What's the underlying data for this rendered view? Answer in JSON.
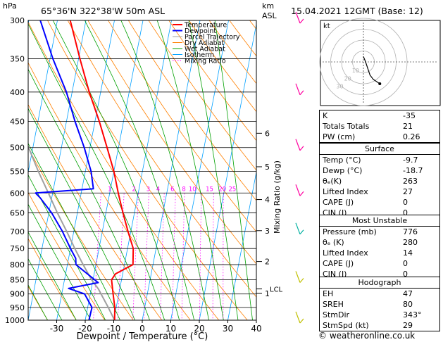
{
  "header": {
    "pressure_unit": "hPa",
    "location": "65°36'N  322°38'W  50m  ASL",
    "altitude_unit": "km",
    "altitude_unit2": "ASL",
    "datetime": "15.04.2021 12GMT (Base: 12)"
  },
  "footer": {
    "credit": "© weatheronline.co.uk"
  },
  "colors": {
    "temperature": "#ff0000",
    "dewpoint": "#0000ff",
    "parcel": "#a0a0a0",
    "dry_adiabat": "#ff8000",
    "wet_adiabat": "#00a000",
    "isotherm": "#00a0ff",
    "mixing_ratio": "#ff00ff",
    "wind": "#ff00a0"
  },
  "chart_data": {
    "type": "line",
    "title": "",
    "xlabel": "Dewpoint / Temperature (°C)",
    "ylabel": "Mixing Ratio (g/kg)",
    "xlim": [
      -40,
      40
    ],
    "x_ticks": [
      -30,
      -20,
      -10,
      0,
      10,
      20,
      30,
      40
    ],
    "pressure_levels": [
      300,
      350,
      400,
      450,
      500,
      550,
      600,
      650,
      700,
      750,
      800,
      850,
      900,
      950,
      1000
    ],
    "ylim_hpa": [
      1000,
      300
    ],
    "km_ticks": [
      {
        "label": "6",
        "p": 472
      },
      {
        "label": "5",
        "p": 540
      },
      {
        "label": "4",
        "p": 616
      },
      {
        "label": "3",
        "p": 698
      },
      {
        "label": "2",
        "p": 790
      },
      {
        "label": "1",
        "p": 898
      }
    ],
    "lcl_label": "LCL",
    "lcl_p": 882,
    "mixing_ratio_labels": [
      {
        "label": "1",
        "t": -20
      },
      {
        "label": "2",
        "t": -11.5
      },
      {
        "label": "3",
        "t": -6.5
      },
      {
        "label": "4",
        "t": -3
      },
      {
        "label": "6",
        "t": 2
      },
      {
        "label": "8",
        "t": 6
      },
      {
        "label": "10",
        "t": 9
      },
      {
        "label": "15",
        "t": 15
      },
      {
        "label": "20",
        "t": 19.5
      },
      {
        "label": "25",
        "t": 23
      }
    ],
    "mixing_ratio_label_p": 600,
    "legend": [
      "Temperature",
      "Dewpoint",
      "Parcel Trajectory",
      "Dry Adiabat",
      "Wet Adiabat",
      "Isotherm",
      "Mixing Ratio"
    ],
    "legend_position": "top-center",
    "series": [
      {
        "name": "Temperature",
        "points": [
          {
            "p": 1000,
            "t": -9.7
          },
          {
            "p": 950,
            "t": -10.5
          },
          {
            "p": 900,
            "t": -12
          },
          {
            "p": 850,
            "t": -13.5
          },
          {
            "p": 830,
            "t": -12.5
          },
          {
            "p": 800,
            "t": -7
          },
          {
            "p": 750,
            "t": -8
          },
          {
            "p": 700,
            "t": -11
          },
          {
            "p": 650,
            "t": -14
          },
          {
            "p": 600,
            "t": -17
          },
          {
            "p": 550,
            "t": -20
          },
          {
            "p": 500,
            "t": -24
          },
          {
            "p": 450,
            "t": -28.5
          },
          {
            "p": 400,
            "t": -34
          },
          {
            "p": 350,
            "t": -39.5
          },
          {
            "p": 300,
            "t": -45.5
          }
        ]
      },
      {
        "name": "Dewpoint",
        "points": [
          {
            "p": 1000,
            "t": -18.7
          },
          {
            "p": 950,
            "t": -18.5
          },
          {
            "p": 900,
            "t": -22
          },
          {
            "p": 880,
            "t": -28
          },
          {
            "p": 860,
            "t": -18
          },
          {
            "p": 800,
            "t": -27
          },
          {
            "p": 780,
            "t": -27.5
          },
          {
            "p": 750,
            "t": -30
          },
          {
            "p": 700,
            "t": -34
          },
          {
            "p": 650,
            "t": -39
          },
          {
            "p": 612,
            "t": -44
          },
          {
            "p": 600,
            "t": -46
          },
          {
            "p": 590,
            "t": -26
          },
          {
            "p": 550,
            "t": -28
          },
          {
            "p": 500,
            "t": -32
          },
          {
            "p": 450,
            "t": -37
          },
          {
            "p": 400,
            "t": -42
          },
          {
            "p": 350,
            "t": -49
          },
          {
            "p": 300,
            "t": -56
          }
        ]
      },
      {
        "name": "Parcel Trajectory",
        "points": [
          {
            "p": 1000,
            "t": -9.7
          },
          {
            "p": 950,
            "t": -12.8
          },
          {
            "p": 882,
            "t": -17.5
          },
          {
            "p": 850,
            "t": -20.5
          },
          {
            "p": 800,
            "t": -24.5
          },
          {
            "p": 750,
            "t": -28.5
          },
          {
            "p": 700,
            "t": -32.5
          },
          {
            "p": 650,
            "t": -37
          },
          {
            "p": 600,
            "t": -41.5
          },
          {
            "p": 550,
            "t": -46.5
          },
          {
            "p": 500,
            "t": -51.5
          },
          {
            "p": 450,
            "t": -57
          },
          {
            "p": 400,
            "t": -62.5
          }
        ]
      }
    ],
    "wind_barb_levels": [
      300,
      400,
      500,
      600,
      700,
      850,
      1000
    ],
    "hodograph": {
      "label": "kt",
      "rings_kt": [
        10,
        20,
        30,
        40
      ],
      "ring_labels": [
        "10",
        "20",
        "30"
      ],
      "points_kt": [
        [
          0,
          5
        ],
        [
          2,
          0
        ],
        [
          4,
          -6
        ],
        [
          6,
          -12
        ],
        [
          9,
          -16
        ],
        [
          12,
          -18
        ],
        [
          15,
          -20
        ]
      ]
    }
  },
  "indices": {
    "basic": [
      {
        "label": "K",
        "value": "-35"
      },
      {
        "label": "Totals Totals",
        "value": "21"
      },
      {
        "label": "PW (cm)",
        "value": "0.26"
      }
    ],
    "surface": {
      "title": "Surface",
      "rows": [
        {
          "label": "Temp (°C)",
          "value": "-9.7"
        },
        {
          "label": "Dewp (°C)",
          "value": "-18.7"
        },
        {
          "label": "θₑ(K)",
          "value": "263"
        },
        {
          "label": "Lifted Index",
          "value": "27"
        },
        {
          "label": "CAPE (J)",
          "value": "0"
        },
        {
          "label": "CIN (J)",
          "value": "0"
        }
      ]
    },
    "most_unstable": {
      "title": "Most Unstable",
      "rows": [
        {
          "label": "Pressure (mb)",
          "value": "776"
        },
        {
          "label": "θₑ (K)",
          "value": "280"
        },
        {
          "label": "Lifted Index",
          "value": "14"
        },
        {
          "label": "CAPE (J)",
          "value": "0"
        },
        {
          "label": "CIN (J)",
          "value": "0"
        }
      ]
    },
    "hodograph": {
      "title": "Hodograph",
      "rows": [
        {
          "label": "EH",
          "value": "47"
        },
        {
          "label": "SREH",
          "value": "80"
        },
        {
          "label": "StmDir",
          "value": "343°"
        },
        {
          "label": "StmSpd (kt)",
          "value": "29"
        }
      ]
    }
  }
}
